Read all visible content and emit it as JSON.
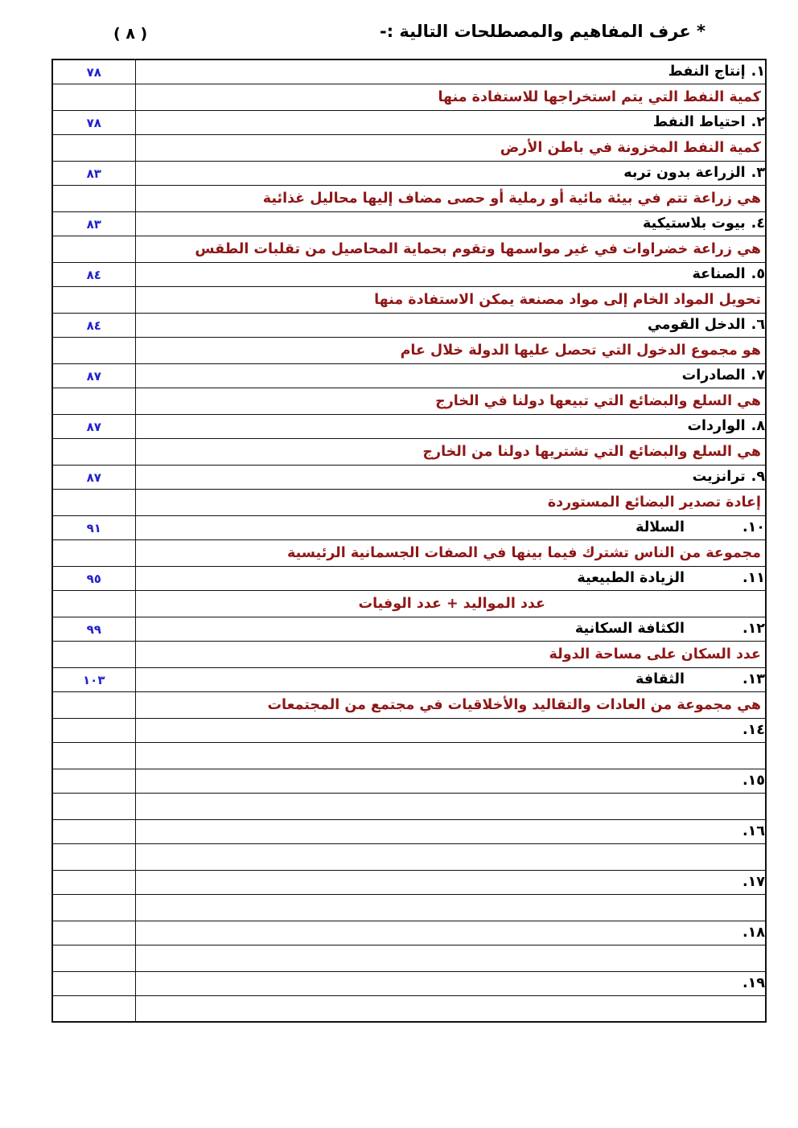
{
  "page": {
    "heading": "* عرف المفاهيم والمصطلحات التالية :-",
    "page_number": "( ٨ )"
  },
  "colors": {
    "term_text": "#000000",
    "definition_text": "#8e1717",
    "page_ref_text": "#2222cc",
    "table_border": "#111111"
  },
  "table": {
    "columns": [
      "content",
      "page_reference"
    ],
    "rows": [
      {
        "kind": "term",
        "num": "١.",
        "text": "إنتاج النفط",
        "ref": "٧٨",
        "gap": "small"
      },
      {
        "kind": "def",
        "text": "كمية النفط التي يتم استخراجها للاستفادة منها",
        "ref": "",
        "align": "right"
      },
      {
        "kind": "term",
        "num": "٢.",
        "text": "احتياط النفط",
        "ref": "٧٨",
        "gap": "small"
      },
      {
        "kind": "def",
        "text": "كمية النفط المخزونة في باطن الأرض",
        "ref": "",
        "align": "right"
      },
      {
        "kind": "term",
        "num": "٣.",
        "text": "الزراعة بدون تربه",
        "ref": "٨٣",
        "gap": "small"
      },
      {
        "kind": "def",
        "text": "هي زراعة تتم في بيئة مائية أو رملية أو حصى مضاف إليها محاليل غذائية",
        "ref": "",
        "align": "right"
      },
      {
        "kind": "term",
        "num": "٤.",
        "text": "بيوت بلاستيكية",
        "ref": "٨٣",
        "gap": "small"
      },
      {
        "kind": "def",
        "text": "هي زراعة خضراوات في غير مواسمها وتقوم بحماية المحاصيل من تقلبات الطقس",
        "ref": "",
        "align": "right"
      },
      {
        "kind": "term",
        "num": "٥.",
        "text": "الصناعة",
        "ref": "٨٤",
        "gap": "small"
      },
      {
        "kind": "def",
        "text": "تحويل المواد الخام إلى مواد مصنعة يمكن الاستفادة منها",
        "ref": "",
        "align": "right"
      },
      {
        "kind": "term",
        "num": "٦.",
        "text": "الدخل القومي",
        "ref": "٨٤",
        "gap": "small"
      },
      {
        "kind": "def",
        "text": "هو مجموع الدخول التي تحصل عليها الدولة خلال عام",
        "ref": "",
        "align": "right"
      },
      {
        "kind": "term",
        "num": "٧.",
        "text": "الصادرات",
        "ref": "٨٧",
        "gap": "small"
      },
      {
        "kind": "def",
        "text": "هي السلع والبضائع التي تبيعها دولنا في الخارج",
        "ref": "",
        "align": "right"
      },
      {
        "kind": "term",
        "num": "٨.",
        "text": "الواردات",
        "ref": "٨٧",
        "gap": "small"
      },
      {
        "kind": "def",
        "text": "هي السلع والبضائع التي تشتريها دولنا من الخارج",
        "ref": "",
        "align": "right"
      },
      {
        "kind": "term",
        "num": "٩.",
        "text": "ترانزيت",
        "ref": "٨٧",
        "gap": "small"
      },
      {
        "kind": "def",
        "text": "إعادة تصدير البضائع المستوردة",
        "ref": "",
        "align": "right"
      },
      {
        "kind": "term",
        "num": "١٠.",
        "text": "السلالة",
        "ref": "٩١",
        "gap": "large"
      },
      {
        "kind": "def",
        "text": "مجموعة من الناس تشترك فيما بينها في الصفات الجسمانية الرئيسية",
        "ref": "",
        "align": "right"
      },
      {
        "kind": "term",
        "num": "١١.",
        "text": "الزيادة الطبيعية",
        "ref": "٩٥",
        "gap": "large"
      },
      {
        "kind": "def",
        "text": "عدد المواليد + عدد الوفيات",
        "ref": "",
        "align": "center"
      },
      {
        "kind": "term",
        "num": "١٢.",
        "text": "الكثافة السكانية",
        "ref": "٩٩",
        "gap": "large"
      },
      {
        "kind": "def",
        "text": "عدد السكان على مساحة الدولة",
        "ref": "",
        "align": "right"
      },
      {
        "kind": "term",
        "num": "١٣.",
        "text": "الثقافة",
        "ref": "١٠٣",
        "gap": "large"
      },
      {
        "kind": "def",
        "text": "هي مجموعة من العادات والتقاليد والأخلاقيات في مجتمع من المجتمعات",
        "ref": "",
        "align": "right"
      },
      {
        "kind": "term",
        "num": "١٤.",
        "text": "",
        "ref": "",
        "gap": "large"
      },
      {
        "kind": "def",
        "text": "",
        "ref": "",
        "align": "right"
      },
      {
        "kind": "term",
        "num": "١٥.",
        "text": "",
        "ref": "",
        "gap": "large"
      },
      {
        "kind": "def",
        "text": "",
        "ref": "",
        "align": "right"
      },
      {
        "kind": "term",
        "num": "١٦.",
        "text": "",
        "ref": "",
        "gap": "large"
      },
      {
        "kind": "def",
        "text": "",
        "ref": "",
        "align": "right"
      },
      {
        "kind": "term",
        "num": "١٧.",
        "text": "",
        "ref": "",
        "gap": "large"
      },
      {
        "kind": "def",
        "text": "",
        "ref": "",
        "align": "right"
      },
      {
        "kind": "term",
        "num": "١٨.",
        "text": "",
        "ref": "",
        "gap": "large"
      },
      {
        "kind": "def",
        "text": "",
        "ref": "",
        "align": "right"
      },
      {
        "kind": "term",
        "num": "١٩.",
        "text": "",
        "ref": "",
        "gap": "large"
      },
      {
        "kind": "def",
        "text": "",
        "ref": "",
        "align": "right"
      }
    ]
  }
}
